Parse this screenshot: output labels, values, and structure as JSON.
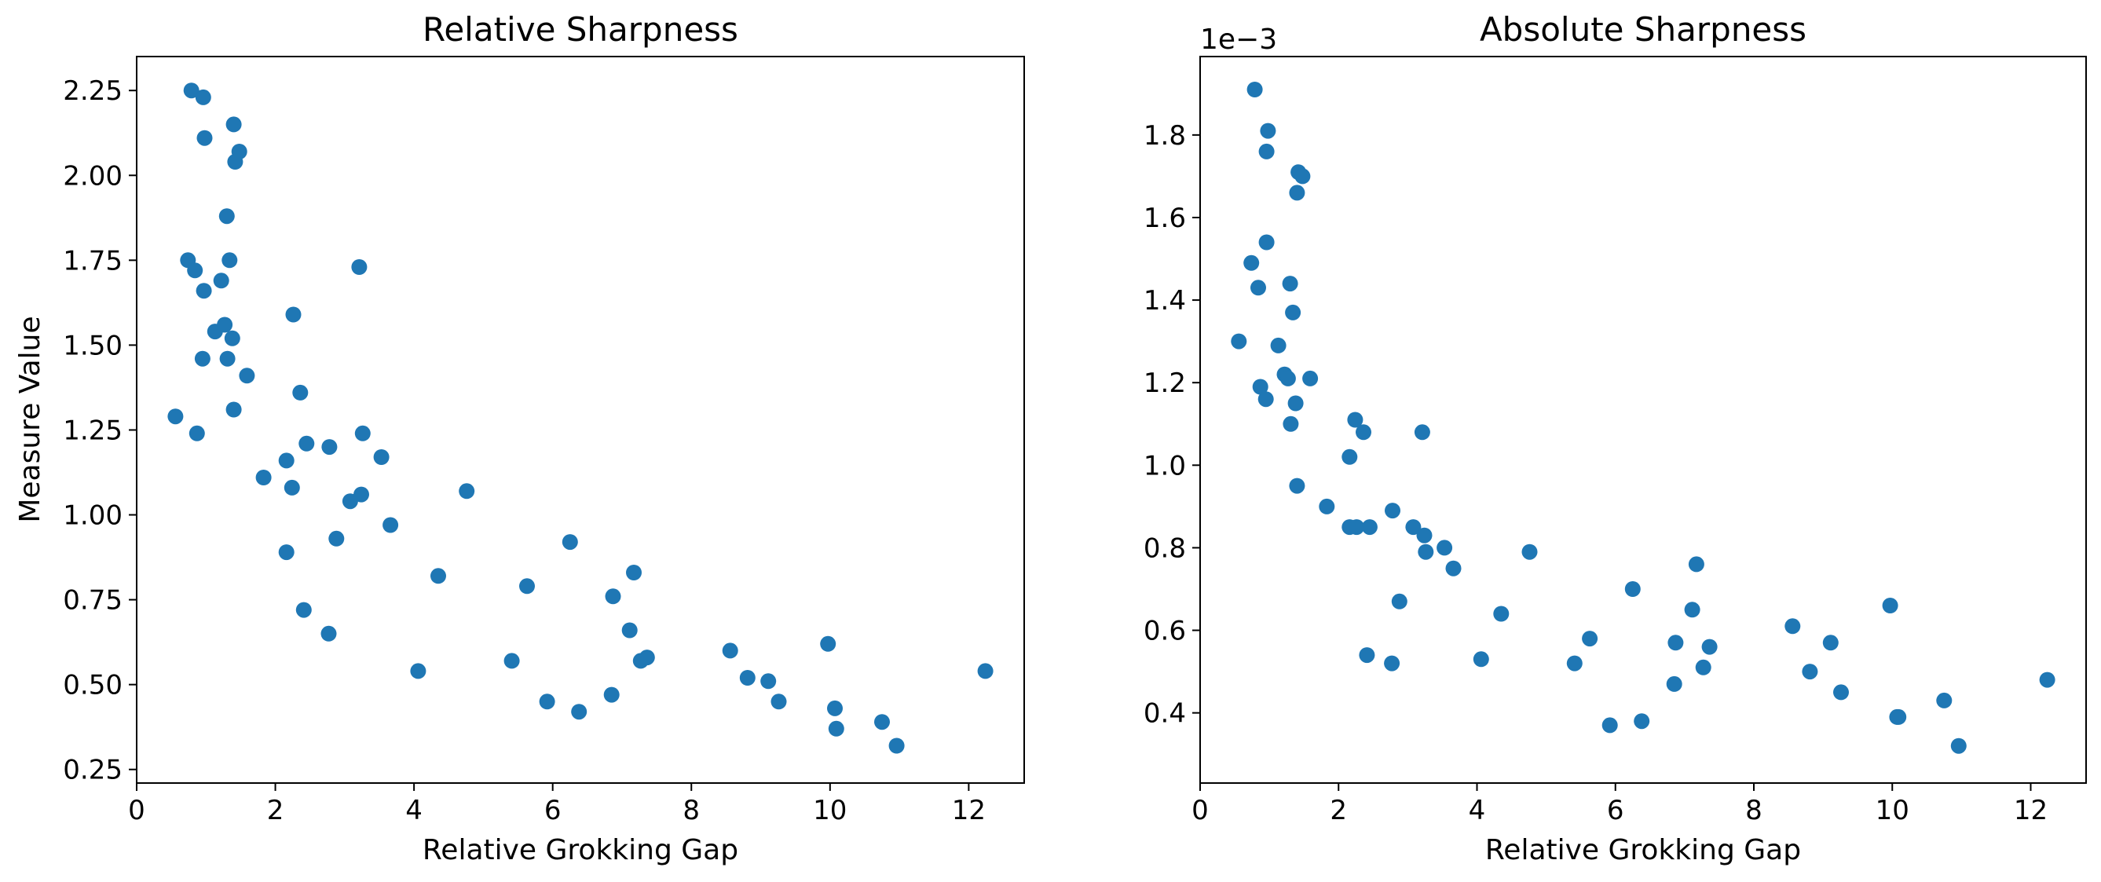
{
  "colors": {
    "marker": "#1f77b4"
  },
  "chart_data": [
    {
      "type": "scatter",
      "title": "Relative Sharpness",
      "xlabel": "Relative Grokking Gap",
      "ylabel": "Measure Value",
      "xlim": [
        0,
        12.8
      ],
      "ylim": [
        0.21,
        2.35
      ],
      "xticks": [
        0,
        2,
        4,
        6,
        8,
        10,
        12
      ],
      "xtick_labels": [
        "0",
        "2",
        "4",
        "6",
        "8",
        "10",
        "12"
      ],
      "yticks": [
        0.25,
        0.5,
        0.75,
        1.0,
        1.25,
        1.5,
        1.75,
        2.0,
        2.25
      ],
      "ytick_labels": [
        "0.25",
        "0.50",
        "0.75",
        "1.00",
        "1.25",
        "1.50",
        "1.75",
        "2.00",
        "2.25"
      ],
      "offset_label": "",
      "grid": false,
      "x": [
        0.56,
        0.74,
        0.79,
        0.84,
        0.87,
        0.95,
        0.97,
        0.98,
        0.96,
        1.13,
        1.22,
        1.27,
        1.31,
        1.3,
        1.34,
        1.38,
        1.4,
        1.42,
        1.4,
        1.48,
        1.59,
        1.83,
        2.16,
        2.16,
        2.24,
        2.26,
        2.36,
        2.41,
        2.45,
        2.77,
        2.78,
        2.88,
        3.08,
        3.21,
        3.24,
        3.26,
        3.53,
        3.66,
        4.06,
        4.35,
        4.76,
        5.41,
        5.63,
        5.92,
        6.25,
        6.38,
        6.85,
        6.87,
        7.11,
        7.17,
        7.27,
        7.36,
        8.56,
        8.81,
        9.11,
        9.26,
        9.97,
        10.07,
        10.09,
        10.75,
        10.96,
        12.24
      ],
      "y": [
        1.29,
        1.75,
        2.25,
        1.72,
        1.24,
        1.46,
        1.66,
        2.11,
        2.23,
        1.54,
        1.69,
        1.56,
        1.46,
        1.88,
        1.75,
        1.52,
        2.15,
        2.04,
        1.31,
        2.07,
        1.41,
        1.11,
        0.89,
        1.16,
        1.08,
        1.59,
        1.36,
        0.72,
        1.21,
        0.65,
        1.2,
        0.93,
        1.04,
        1.73,
        1.06,
        1.24,
        1.17,
        0.97,
        0.54,
        0.82,
        1.07,
        0.57,
        0.79,
        0.45,
        0.92,
        0.42,
        0.47,
        0.76,
        0.66,
        0.83,
        0.57,
        0.58,
        0.6,
        0.52,
        0.51,
        0.45,
        0.62,
        0.43,
        0.37,
        0.39,
        0.32,
        0.54
      ]
    },
    {
      "type": "scatter",
      "title": "Absolute Sharpness",
      "xlabel": "Relative Grokking Gap",
      "ylabel": "",
      "xlim": [
        0,
        12.8
      ],
      "ylim": [
        0.00023,
        0.00199
      ],
      "xticks": [
        0,
        2,
        4,
        6,
        8,
        10,
        12
      ],
      "xtick_labels": [
        "0",
        "2",
        "4",
        "6",
        "8",
        "10",
        "12"
      ],
      "yticks": [
        0.0004,
        0.0006,
        0.0008,
        0.001,
        0.0012,
        0.0014,
        0.0016,
        0.0018
      ],
      "ytick_labels": [
        "0.4",
        "0.6",
        "0.8",
        "1.0",
        "1.2",
        "1.4",
        "1.6",
        "1.8"
      ],
      "offset_label": "1e−3",
      "grid": false,
      "x": [
        0.56,
        0.74,
        0.79,
        0.84,
        0.87,
        0.95,
        0.96,
        0.98,
        0.96,
        1.13,
        1.22,
        1.27,
        1.31,
        1.3,
        1.34,
        1.38,
        1.4,
        1.42,
        1.4,
        1.48,
        1.59,
        1.83,
        2.16,
        2.16,
        2.24,
        2.26,
        2.36,
        2.41,
        2.45,
        2.77,
        2.78,
        2.88,
        3.08,
        3.21,
        3.24,
        3.26,
        3.53,
        3.66,
        4.06,
        4.35,
        4.76,
        5.41,
        5.63,
        5.92,
        6.25,
        6.38,
        6.85,
        6.87,
        7.11,
        7.17,
        7.27,
        7.36,
        8.56,
        8.81,
        9.11,
        9.26,
        9.97,
        10.07,
        10.09,
        10.75,
        10.96,
        12.24
      ],
      "y": [
        0.0013,
        0.00149,
        0.00191,
        0.00143,
        0.00119,
        0.00116,
        0.00154,
        0.00181,
        0.00176,
        0.00129,
        0.00122,
        0.00121,
        0.0011,
        0.00144,
        0.00137,
        0.00115,
        0.00095,
        0.00171,
        0.00166,
        0.0017,
        0.00121,
        0.0009,
        0.00102,
        0.00085,
        0.00111,
        0.00085,
        0.00108,
        0.00054,
        0.00085,
        0.00052,
        0.00089,
        0.00067,
        0.00085,
        0.00108,
        0.00083,
        0.00079,
        0.0008,
        0.00075,
        0.00053,
        0.00064,
        0.00079,
        0.00052,
        0.00058,
        0.00037,
        0.0007,
        0.00038,
        0.00047,
        0.00057,
        0.00065,
        0.00076,
        0.00051,
        0.00056,
        0.00061,
        0.0005,
        0.00057,
        0.00045,
        0.00066,
        0.00039,
        0.00039,
        0.00043,
        0.00032,
        0.00048
      ]
    }
  ]
}
